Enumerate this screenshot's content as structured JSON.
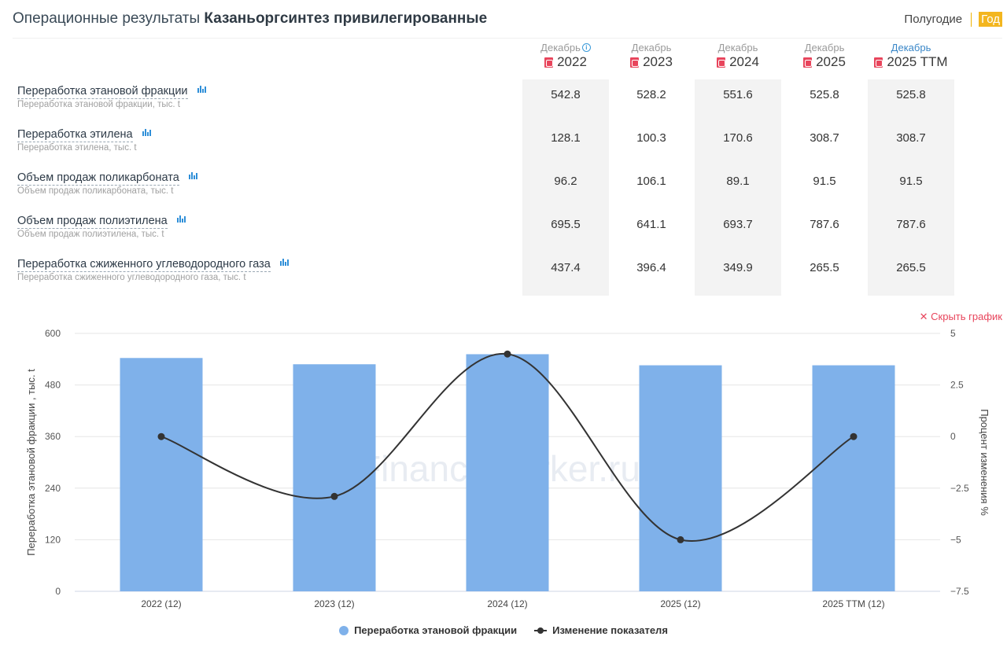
{
  "header": {
    "title_prefix": "Операционные результаты",
    "title_company": "Казаньоргсинтез привилегированные",
    "period_half": "Полугодие",
    "period_year": "Год"
  },
  "columns": [
    {
      "month": "Декабрь",
      "year": "2022",
      "info": true,
      "month_color": "#9a9a9a",
      "shaded": true
    },
    {
      "month": "Декабрь",
      "year": "2023",
      "info": false,
      "month_color": "#9a9a9a",
      "shaded": false
    },
    {
      "month": "Декабрь",
      "year": "2024",
      "info": false,
      "month_color": "#9a9a9a",
      "shaded": true
    },
    {
      "month": "Декабрь",
      "year": "2025",
      "info": false,
      "month_color": "#9a9a9a",
      "shaded": false
    },
    {
      "month": "Декабрь",
      "year": "2025 TTM",
      "info": false,
      "month_color": "#3a87c8",
      "shaded": true
    }
  ],
  "rows": [
    {
      "title": "Переработка этановой фракции",
      "subtitle": "Переработка этановой фракции, тыс. t",
      "values": [
        "542.8",
        "528.2",
        "551.6",
        "525.8",
        "525.8"
      ]
    },
    {
      "title": "Переработка этилена",
      "subtitle": "Переработка этилена, тыс. t",
      "values": [
        "128.1",
        "100.3",
        "170.6",
        "308.7",
        "308.7"
      ]
    },
    {
      "title": "Объем продаж поликарбоната",
      "subtitle": "Объем продаж поликарбоната, тыс. t",
      "values": [
        "96.2",
        "106.1",
        "89.1",
        "91.5",
        "91.5"
      ]
    },
    {
      "title": "Объем продаж полиэтилена",
      "subtitle": "Объем продаж полиэтилена, тыс. t",
      "values": [
        "695.5",
        "641.1",
        "693.7",
        "787.6",
        "787.6"
      ]
    },
    {
      "title": "Переработка сжиженного углеводородного газа",
      "subtitle": "Переработка сжиженного углеводородного газа, тыс. t",
      "values": [
        "437.4",
        "396.4",
        "349.9",
        "265.5",
        "265.5"
      ]
    }
  ],
  "hide_chart_label": "✕ Скрыть график",
  "chart_data": {
    "type": "bar",
    "categories": [
      "2022 (12)",
      "2023 (12)",
      "2024 (12)",
      "2025 (12)",
      "2025 TTM (12)"
    ],
    "series": [
      {
        "name": "Переработка этановой фракции",
        "type": "bar",
        "axis": "left",
        "values": [
          542.8,
          528.2,
          551.6,
          525.8,
          525.8
        ],
        "color": "#7fb1ea"
      },
      {
        "name": "Изменение показателя",
        "type": "line",
        "axis": "right",
        "values": [
          0,
          -2.9,
          4.0,
          -5.0,
          0
        ],
        "color": "#333333"
      }
    ],
    "ylabel": "Переработка этановой фракции , тыс. t",
    "y2label": "Процент изменения %",
    "ylim": [
      0,
      600
    ],
    "y2lim": [
      -7.5,
      5
    ],
    "yticks": [
      "0",
      "120",
      "240",
      "360",
      "480",
      "600"
    ],
    "y2ticks": [
      "−7.5",
      "−5",
      "−2.5",
      "0",
      "2.5",
      "5"
    ],
    "watermark": "FinanceMarker.ru",
    "legend_position": "bottom"
  }
}
